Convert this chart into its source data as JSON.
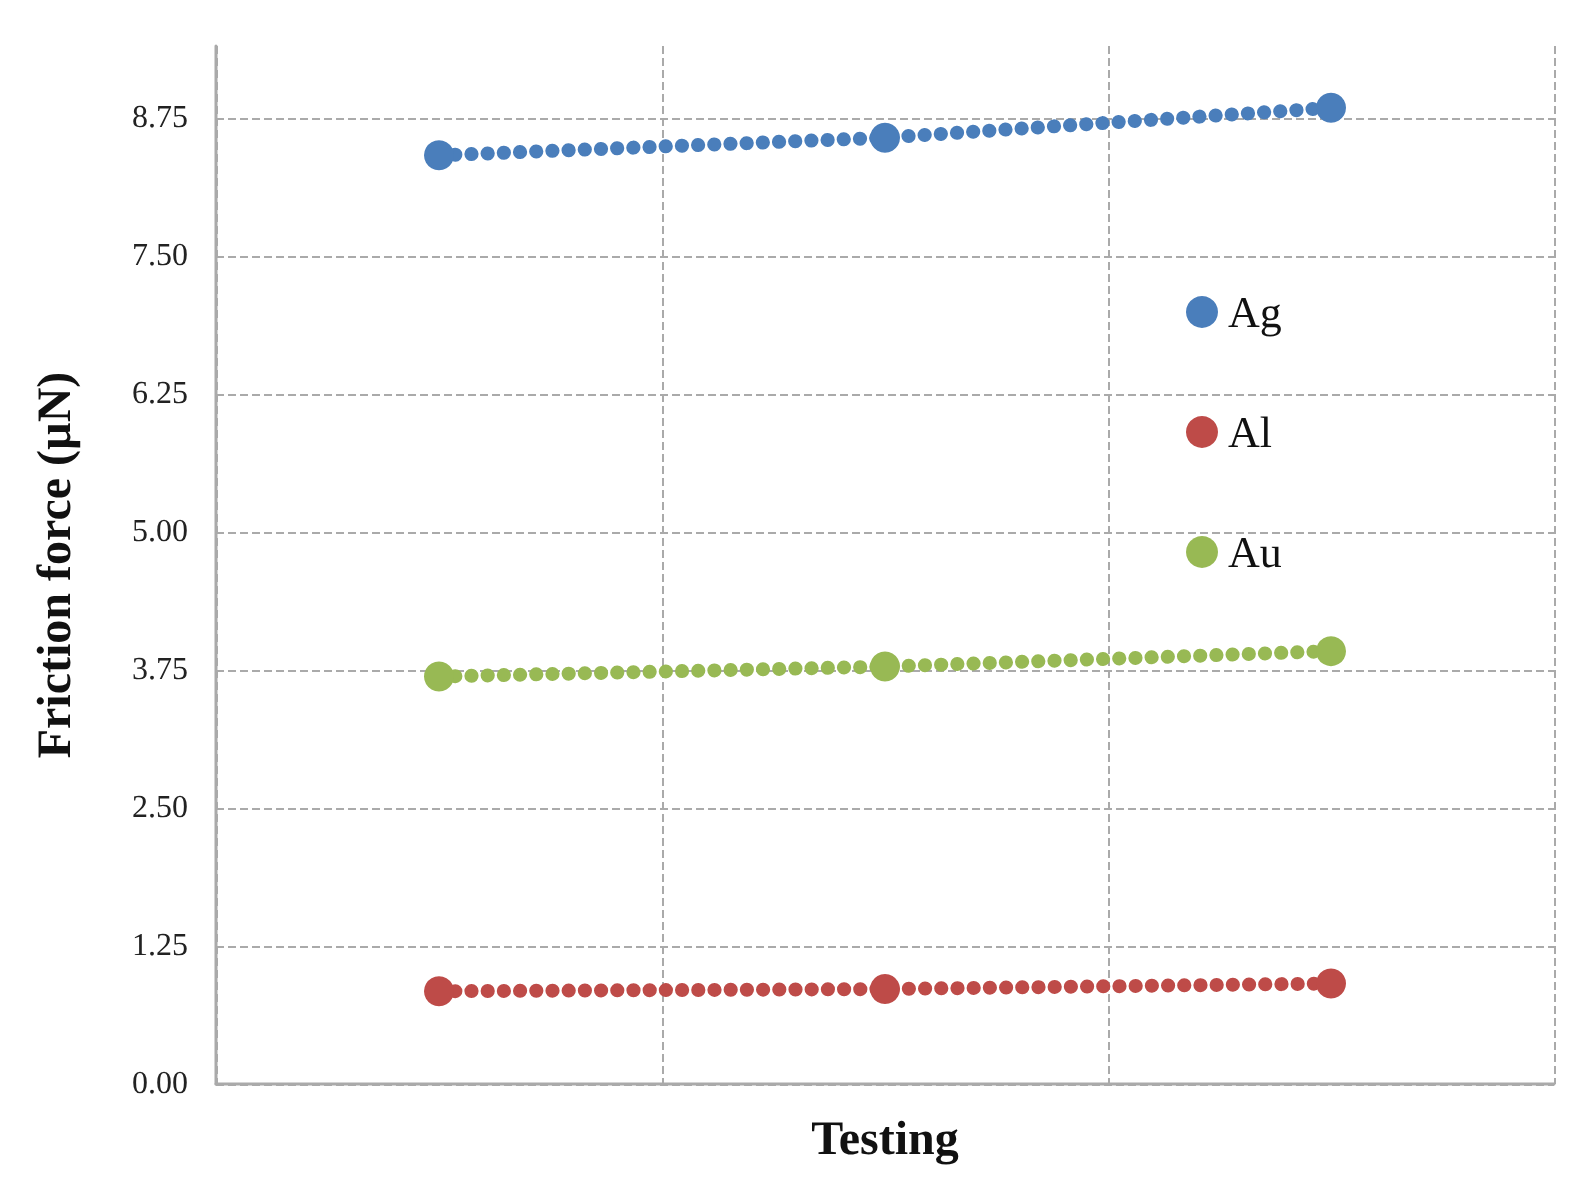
{
  "chart_data": {
    "type": "line",
    "xlabel": "Testing",
    "ylabel": "Friction force (µN)",
    "categories": [
      null,
      null,
      null
    ],
    "ylim": [
      0,
      9.4
    ],
    "yticks": [
      {
        "value": 0,
        "label": "0.00"
      },
      {
        "value": 1.25,
        "label": "1.25"
      },
      {
        "value": 2.5,
        "label": "2.50"
      },
      {
        "value": 3.75,
        "label": "3.75"
      },
      {
        "value": 5,
        "label": "5.00"
      },
      {
        "value": 6.25,
        "label": "6.25"
      },
      {
        "value": 7.5,
        "label": "7.50"
      },
      {
        "value": 8.75,
        "label": "8.75"
      }
    ],
    "tick_labels": "y",
    "grid": true,
    "legend": "right",
    "marker": "circle",
    "line_style": "dotted",
    "series": [
      {
        "name": "Ag",
        "color": "#4a7ebb",
        "values": [
          8.41,
          8.57,
          8.84
        ]
      },
      {
        "name": "Al",
        "color": "#be4b48",
        "values": [
          0.84,
          0.86,
          0.91
        ]
      },
      {
        "name": "Au",
        "color": "#98b954",
        "values": [
          3.69,
          3.78,
          3.92
        ]
      }
    ]
  }
}
